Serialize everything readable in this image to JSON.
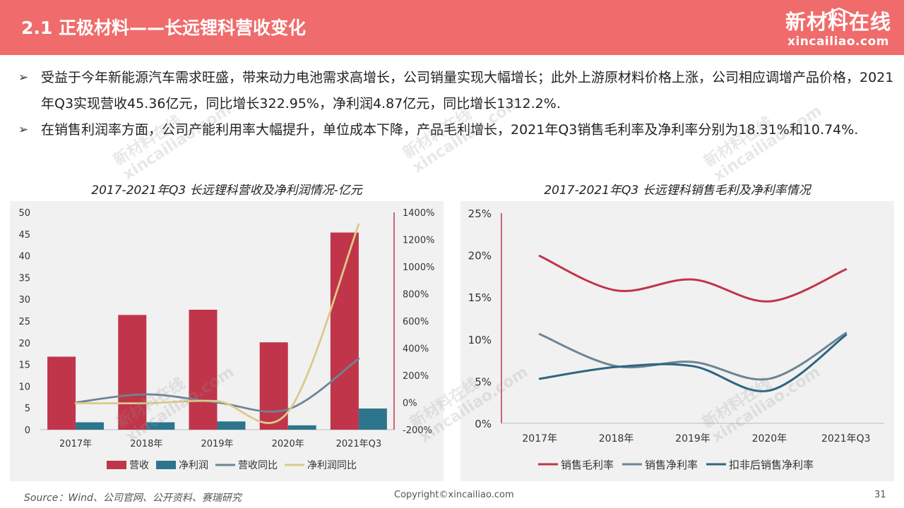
{
  "header": {
    "title": "2.1 正极材料——长远锂科营收变化",
    "logo_main": "新材料在线",
    "logo_sub": "xincailiao.com"
  },
  "bullets": [
    "受益于今年新能源汽车需求旺盛，带来动力电池需求高增长，公司销量实现大幅增长；此外上游原材料价格上涨，公司相应调增产品价格，2021年Q3实现营收45.36亿元，同比增长322.95%，净利润4.87亿元，同比增长1312.2%.",
    "在销售利润率方面，公司产能利用率大幅提升，单位成本下降，产品毛利增长，2021年Q3销售毛利率及净利率分别为18.31%和10.74%."
  ],
  "watermark": {
    "line1": "新材料在线",
    "line2": "xincailiao.com"
  },
  "chart_data": [
    {
      "type": "bar",
      "title": "2017-2021年Q3 长远锂科营收及净利润情况-亿元",
      "categories": [
        "2017年",
        "2018年",
        "2019年",
        "2020年",
        "2021年Q3"
      ],
      "series": [
        {
          "name": "营收",
          "kind": "bar",
          "axis": "left",
          "color": "#c0354a",
          "values": [
            16.8,
            26.4,
            27.6,
            20.1,
            45.36
          ]
        },
        {
          "name": "净利润",
          "kind": "bar",
          "axis": "left",
          "color": "#2d758c",
          "values": [
            1.7,
            1.7,
            1.9,
            1.0,
            4.87
          ]
        },
        {
          "name": "营收同比",
          "kind": "line",
          "axis": "right",
          "color": "#6c8593",
          "values": [
            0,
            60,
            0,
            -50,
            322.95
          ]
        },
        {
          "name": "净利润同比",
          "kind": "line",
          "axis": "right",
          "color": "#dcc98a",
          "values": [
            -5,
            -5,
            10,
            -70,
            1312.2
          ]
        }
      ],
      "y_left": {
        "min": 0,
        "max": 50,
        "ticks": [
          "0",
          "5",
          "10",
          "15",
          "20",
          "25",
          "30",
          "35",
          "40",
          "45",
          "50"
        ]
      },
      "y_right": {
        "min": -200,
        "max": 1400,
        "ticks": [
          "-200%",
          "0%",
          "200%",
          "400%",
          "600%",
          "800%",
          "1000%",
          "1200%",
          "1400%"
        ]
      },
      "legend_position": "bottom"
    },
    {
      "type": "line",
      "title": "2017-2021年Q3 长远锂科销售毛利及净利率情况",
      "categories": [
        "2017年",
        "2018年",
        "2019年",
        "2020年",
        "2021年Q3"
      ],
      "series": [
        {
          "name": "销售毛利率",
          "color": "#c0354a",
          "values": [
            19.9,
            15.8,
            17.1,
            14.5,
            18.31
          ]
        },
        {
          "name": "销售净利率",
          "color": "#6c8593",
          "values": [
            10.6,
            6.8,
            7.3,
            5.3,
            10.74
          ]
        },
        {
          "name": "扣非后销售净利率",
          "color": "#2d6682",
          "values": [
            5.3,
            6.7,
            6.8,
            3.9,
            10.5
          ]
        }
      ],
      "y": {
        "min": 0,
        "max": 25,
        "ticks": [
          "0%",
          "5%",
          "10%",
          "15%",
          "20%",
          "25%"
        ]
      },
      "legend_position": "bottom"
    }
  ],
  "footer": {
    "source": "Source：Wind、公司官网、公开资料、赛瑞研究",
    "copyright": "Copyright©xincailiao.com",
    "page": "31"
  }
}
